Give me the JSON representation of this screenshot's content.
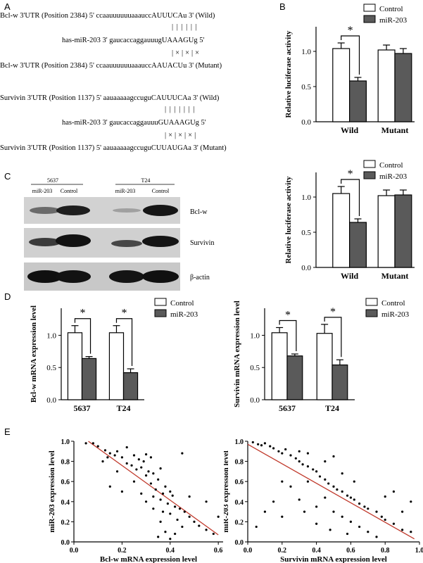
{
  "panels": {
    "a": "A",
    "b": "B",
    "c": "C",
    "d": "D",
    "e": "E"
  },
  "sequences": {
    "bclw_wild": "Bcl-w 3'UTR (Position 2384)  5' ccaauuuuuuaaauccAUUUCAu  3' (Wild)",
    "bclw_pairs": "| | | | | |",
    "bclw_mir": "has-miR-203 3' gaucaccaggauuugUAAAGUg 5'",
    "bclw_mut_marks": "|×|×|×",
    "bclw_mut": "Bcl-w 3'UTR (Position 2384)  5' ccaauuuuuuaaauccAAUACUu  3' (Mutant)",
    "surv_wild": "Survivin 3'UTR (Position 1137)  5'  aauaaaaagccuguCAUUUCAa 3' (Wild)",
    "surv_pairs": "| | | | | | |",
    "surv_mir": "has-miR-203  3'  gaucaccaggauuuGUAAAGUg 5'",
    "surv_mut_marks": "|×|×|×|",
    "surv_mut": "Survivin 3'UTR (Position 1137)  5'  aauaaaaagccuguCUUAUGAa  3' (Mutant)"
  },
  "western": {
    "cell_lines": [
      "5637",
      "T24"
    ],
    "lanes": [
      "miR-203",
      "Control",
      "miR-203",
      "Control"
    ],
    "proteins": [
      "Bcl-w",
      "Survivin",
      "β-actin"
    ]
  },
  "legend": {
    "control": "Control",
    "mir": "miR-203"
  },
  "colors": {
    "control": "#ffffff",
    "mir": "#5a5a5a",
    "fit_line": "#c0392b"
  },
  "significance": "*",
  "chart_data": [
    {
      "id": "b1",
      "type": "bar",
      "ylabel": "Relative luciferase activity",
      "categories": [
        "Wild",
        "Mutant"
      ],
      "yticks": [
        "0.0",
        "0.5",
        "1.0"
      ],
      "ylim": [
        0,
        1.35
      ],
      "series": [
        {
          "name": "Control",
          "values": [
            1.04,
            1.02
          ],
          "errors": [
            0.08,
            0.07
          ]
        },
        {
          "name": "miR-203",
          "values": [
            0.58,
            0.97
          ],
          "errors": [
            0.05,
            0.07
          ]
        }
      ],
      "significant": [
        0
      ]
    },
    {
      "id": "b2",
      "type": "bar",
      "ylabel": "Relative luciferase activity",
      "categories": [
        "Wild",
        "Mutant"
      ],
      "yticks": [
        "0.0",
        "0.5",
        "1.0"
      ],
      "ylim": [
        0,
        1.35
      ],
      "series": [
        {
          "name": "Control",
          "values": [
            1.05,
            1.02
          ],
          "errors": [
            0.1,
            0.08
          ]
        },
        {
          "name": "miR-203",
          "values": [
            0.64,
            1.03
          ],
          "errors": [
            0.05,
            0.07
          ]
        }
      ],
      "significant": [
        0
      ]
    },
    {
      "id": "d1",
      "type": "bar",
      "ylabel": "Bcl-w mRNA expression level",
      "categories": [
        "5637",
        "T24"
      ],
      "yticks": [
        "0.0",
        "0.5",
        "1.0"
      ],
      "ylim": [
        0,
        1.42
      ],
      "series": [
        {
          "name": "Control",
          "values": [
            1.04,
            1.04
          ],
          "errors": [
            0.11,
            0.11
          ]
        },
        {
          "name": "miR-203",
          "values": [
            0.64,
            0.42
          ],
          "errors": [
            0.03,
            0.06
          ]
        }
      ],
      "significant": [
        0,
        1
      ]
    },
    {
      "id": "d2",
      "type": "bar",
      "ylabel": "Survivin mRNA expression level",
      "categories": [
        "5637",
        "T24"
      ],
      "yticks": [
        "0.0",
        "0.5",
        "1.0"
      ],
      "ylim": [
        0,
        1.42
      ],
      "series": [
        {
          "name": "Control",
          "values": [
            1.04,
            1.03
          ],
          "errors": [
            0.08,
            0.14
          ]
        },
        {
          "name": "miR-203",
          "values": [
            0.68,
            0.54
          ],
          "errors": [
            0.03,
            0.08
          ]
        }
      ],
      "significant": [
        0,
        1
      ]
    },
    {
      "id": "e1",
      "type": "scatter",
      "xlabel": "Bcl-w mRNA expression level",
      "ylabel": "miR-203 expression level",
      "xlim": [
        0,
        0.62
      ],
      "ylim": [
        0,
        1.0
      ],
      "xticks": [
        "0.0",
        "0.2",
        "0.4",
        "0.6"
      ],
      "yticks": [
        "0.0",
        "0.2",
        "0.4",
        "0.6",
        "0.8",
        "1.0"
      ],
      "fit_line": [
        [
          0.06,
          1.0
        ],
        [
          0.6,
          0.07
        ]
      ],
      "points": [
        [
          0.05,
          0.98
        ],
        [
          0.08,
          0.98
        ],
        [
          0.1,
          0.95
        ],
        [
          0.13,
          0.91
        ],
        [
          0.15,
          0.88
        ],
        [
          0.14,
          0.84
        ],
        [
          0.17,
          0.86
        ],
        [
          0.2,
          0.84
        ],
        [
          0.18,
          0.9
        ],
        [
          0.22,
          0.94
        ],
        [
          0.25,
          0.86
        ],
        [
          0.27,
          0.82
        ],
        [
          0.29,
          0.8
        ],
        [
          0.3,
          0.87
        ],
        [
          0.32,
          0.84
        ],
        [
          0.22,
          0.78
        ],
        [
          0.24,
          0.76
        ],
        [
          0.26,
          0.72
        ],
        [
          0.28,
          0.74
        ],
        [
          0.31,
          0.7
        ],
        [
          0.33,
          0.68
        ],
        [
          0.3,
          0.66
        ],
        [
          0.35,
          0.62
        ],
        [
          0.36,
          0.73
        ],
        [
          0.38,
          0.55
        ],
        [
          0.34,
          0.52
        ],
        [
          0.37,
          0.48
        ],
        [
          0.4,
          0.5
        ],
        [
          0.41,
          0.46
        ],
        [
          0.33,
          0.45
        ],
        [
          0.36,
          0.42
        ],
        [
          0.39,
          0.38
        ],
        [
          0.42,
          0.35
        ],
        [
          0.3,
          0.4
        ],
        [
          0.28,
          0.48
        ],
        [
          0.44,
          0.33
        ],
        [
          0.46,
          0.3
        ],
        [
          0.4,
          0.28
        ],
        [
          0.37,
          0.3
        ],
        [
          0.43,
          0.22
        ],
        [
          0.48,
          0.25
        ],
        [
          0.5,
          0.2
        ],
        [
          0.36,
          0.2
        ],
        [
          0.52,
          0.16
        ],
        [
          0.55,
          0.12
        ],
        [
          0.58,
          0.08
        ],
        [
          0.45,
          0.15
        ],
        [
          0.38,
          0.1
        ],
        [
          0.35,
          0.05
        ],
        [
          0.42,
          0.08
        ],
        [
          0.2,
          0.5
        ],
        [
          0.15,
          0.55
        ],
        [
          0.25,
          0.6
        ],
        [
          0.32,
          0.58
        ],
        [
          0.45,
          0.88
        ],
        [
          0.55,
          0.4
        ],
        [
          0.6,
          0.25
        ],
        [
          0.48,
          0.45
        ],
        [
          0.18,
          0.7
        ],
        [
          0.12,
          0.8
        ],
        [
          0.4,
          0.03
        ],
        [
          0.33,
          0.33
        ]
      ]
    },
    {
      "id": "e2",
      "type": "scatter",
      "xlabel": "Survivin mRNA expression level",
      "ylabel": "miR-203 expression level",
      "xlim": [
        0,
        1.0
      ],
      "ylim": [
        0,
        1.0
      ],
      "xticks": [
        "0.0",
        "0.2",
        "0.4",
        "0.6",
        "0.8",
        "1.0"
      ],
      "yticks": [
        "0.0",
        "0.2",
        "0.4",
        "0.6",
        "0.8",
        "1.0"
      ],
      "fit_line": [
        [
          0.0,
          0.97
        ],
        [
          0.97,
          0.03
        ]
      ],
      "points": [
        [
          0.03,
          0.99
        ],
        [
          0.06,
          0.97
        ],
        [
          0.08,
          0.96
        ],
        [
          0.1,
          0.98
        ],
        [
          0.13,
          0.95
        ],
        [
          0.15,
          0.93
        ],
        [
          0.18,
          0.9
        ],
        [
          0.2,
          0.88
        ],
        [
          0.22,
          0.92
        ],
        [
          0.25,
          0.86
        ],
        [
          0.28,
          0.83
        ],
        [
          0.3,
          0.8
        ],
        [
          0.32,
          0.77
        ],
        [
          0.35,
          0.75
        ],
        [
          0.38,
          0.72
        ],
        [
          0.4,
          0.7
        ],
        [
          0.42,
          0.65
        ],
        [
          0.45,
          0.62
        ],
        [
          0.47,
          0.58
        ],
        [
          0.5,
          0.55
        ],
        [
          0.52,
          0.52
        ],
        [
          0.55,
          0.5
        ],
        [
          0.58,
          0.46
        ],
        [
          0.6,
          0.44
        ],
        [
          0.62,
          0.42
        ],
        [
          0.65,
          0.38
        ],
        [
          0.68,
          0.35
        ],
        [
          0.7,
          0.33
        ],
        [
          0.75,
          0.3
        ],
        [
          0.78,
          0.25
        ],
        [
          0.8,
          0.22
        ],
        [
          0.85,
          0.18
        ],
        [
          0.9,
          0.12
        ],
        [
          0.95,
          0.1
        ],
        [
          0.2,
          0.6
        ],
        [
          0.25,
          0.55
        ],
        [
          0.3,
          0.42
        ],
        [
          0.33,
          0.3
        ],
        [
          0.4,
          0.35
        ],
        [
          0.45,
          0.44
        ],
        [
          0.5,
          0.3
        ],
        [
          0.55,
          0.25
        ],
        [
          0.6,
          0.2
        ],
        [
          0.65,
          0.15
        ],
        [
          0.7,
          0.1
        ],
        [
          0.75,
          0.05
        ],
        [
          0.15,
          0.4
        ],
        [
          0.2,
          0.25
        ],
        [
          0.1,
          0.3
        ],
        [
          0.05,
          0.15
        ],
        [
          0.35,
          0.6
        ],
        [
          0.55,
          0.68
        ],
        [
          0.62,
          0.6
        ],
        [
          0.8,
          0.45
        ],
        [
          0.85,
          0.5
        ],
        [
          0.95,
          0.4
        ],
        [
          0.9,
          0.3
        ],
        [
          0.45,
          0.8
        ],
        [
          0.5,
          0.85
        ],
        [
          0.35,
          0.88
        ],
        [
          0.3,
          0.9
        ],
        [
          0.48,
          0.12
        ],
        [
          0.58,
          0.08
        ],
        [
          0.4,
          0.18
        ]
      ]
    }
  ]
}
